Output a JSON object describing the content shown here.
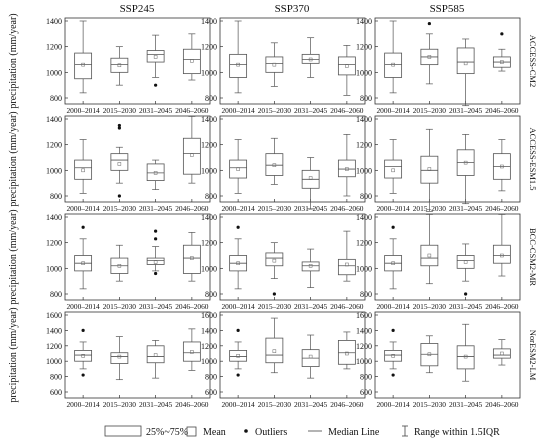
{
  "chart_data": {
    "type": "box",
    "columns": [
      "SSP245",
      "SSP370",
      "SSP585"
    ],
    "rows": [
      "ACCESS-CM2",
      "ACCESS-ESM1.5",
      "BCC-CSM2-MR",
      "NorESM2-LM"
    ],
    "periods": [
      "2000–2014",
      "2015–2030",
      "2031–2045",
      "2046–2060"
    ],
    "ylabel": "precipitation (mm/year)",
    "ylim": [
      800,
      1400
    ],
    "ylim_last_row": [
      600,
      1600
    ],
    "yticks": [
      800,
      1000,
      1200,
      1400
    ],
    "yticks_last_row": [
      600,
      800,
      1000,
      1200,
      1400,
      1600
    ],
    "legend": {
      "box": "25%~75%",
      "mean": "Mean",
      "outliers": "Outliers",
      "median": "Median Line",
      "whisker": "Range within 1.5IQR"
    },
    "panels": [
      [
        [
          {
            "wlo": 840,
            "q1": 950,
            "med": 1060,
            "q3": 1150,
            "whi": 1400,
            "mean": 1060,
            "out": []
          },
          {
            "wlo": 900,
            "q1": 1000,
            "med": 1060,
            "q3": 1110,
            "whi": 1200,
            "mean": 1055,
            "out": []
          },
          {
            "wlo": 960,
            "q1": 1080,
            "med": 1140,
            "q3": 1170,
            "whi": 1290,
            "mean": 1120,
            "out": [
              900
            ]
          },
          {
            "wlo": 940,
            "q1": 990,
            "med": 1100,
            "q3": 1180,
            "whi": 1300,
            "mean": 1090,
            "out": []
          }
        ],
        [
          {
            "wlo": 840,
            "q1": 960,
            "med": 1060,
            "q3": 1140,
            "whi": 1400,
            "mean": 1060,
            "out": []
          },
          {
            "wlo": 890,
            "q1": 1000,
            "med": 1070,
            "q3": 1120,
            "whi": 1230,
            "mean": 1060,
            "out": []
          },
          {
            "wlo": 960,
            "q1": 1070,
            "med": 1100,
            "q3": 1140,
            "whi": 1270,
            "mean": 1100,
            "out": []
          },
          {
            "wlo": 820,
            "q1": 980,
            "med": 1060,
            "q3": 1120,
            "whi": 1210,
            "mean": 1050,
            "out": []
          }
        ],
        [
          {
            "wlo": 840,
            "q1": 960,
            "med": 1060,
            "q3": 1150,
            "whi": 1400,
            "mean": 1060,
            "out": []
          },
          {
            "wlo": 910,
            "q1": 1060,
            "med": 1120,
            "q3": 1180,
            "whi": 1300,
            "mean": 1120,
            "out": [
              1380
            ]
          },
          {
            "wlo": 740,
            "q1": 990,
            "med": 1080,
            "q3": 1190,
            "whi": 1260,
            "mean": 1070,
            "out": []
          },
          {
            "wlo": 1010,
            "q1": 1040,
            "med": 1080,
            "q3": 1120,
            "whi": 1180,
            "mean": 1080,
            "out": [
              1300
            ]
          }
        ]
      ],
      [
        [
          {
            "wlo": 820,
            "q1": 930,
            "med": 1020,
            "q3": 1080,
            "whi": 1240,
            "mean": 1000,
            "out": []
          },
          {
            "wlo": 900,
            "q1": 1000,
            "med": 1080,
            "q3": 1130,
            "whi": 1180,
            "mean": 1050,
            "out": [
              1350,
              1330,
              800
            ]
          },
          {
            "wlo": 850,
            "q1": 920,
            "med": 980,
            "q3": 1050,
            "whi": 1080,
            "mean": 980,
            "out": []
          },
          {
            "wlo": 900,
            "q1": 970,
            "med": 1130,
            "q3": 1250,
            "whi": 1420,
            "mean": 1120,
            "out": []
          }
        ],
        [
          {
            "wlo": 820,
            "q1": 940,
            "med": 1020,
            "q3": 1080,
            "whi": 1240,
            "mean": 1010,
            "out": []
          },
          {
            "wlo": 890,
            "q1": 960,
            "med": 1040,
            "q3": 1130,
            "whi": 1250,
            "mean": 1040,
            "out": []
          },
          {
            "wlo": 700,
            "q1": 860,
            "med": 930,
            "q3": 1000,
            "whi": 1100,
            "mean": 940,
            "out": []
          },
          {
            "wlo": 800,
            "q1": 950,
            "med": 1010,
            "q3": 1080,
            "whi": 1280,
            "mean": 1010,
            "out": []
          }
        ],
        [
          {
            "wlo": 820,
            "q1": 940,
            "med": 1030,
            "q3": 1080,
            "whi": 1240,
            "mean": 1000,
            "out": []
          },
          {
            "wlo": 680,
            "q1": 900,
            "med": 1000,
            "q3": 1110,
            "whi": 1320,
            "mean": 1010,
            "out": []
          },
          {
            "wlo": 740,
            "q1": 960,
            "med": 1060,
            "q3": 1160,
            "whi": 1280,
            "mean": 1060,
            "out": []
          },
          {
            "wlo": 840,
            "q1": 930,
            "med": 1030,
            "q3": 1130,
            "whi": 1240,
            "mean": 1030,
            "out": []
          }
        ]
      ],
      [
        [
          {
            "wlo": 840,
            "q1": 980,
            "med": 1040,
            "q3": 1100,
            "whi": 1230,
            "mean": 1040,
            "out": [
              1320
            ]
          },
          {
            "wlo": 900,
            "q1": 960,
            "med": 1020,
            "q3": 1080,
            "whi": 1180,
            "mean": 1020,
            "out": []
          },
          {
            "wlo": 980,
            "q1": 1030,
            "med": 1060,
            "q3": 1080,
            "whi": 1170,
            "mean": 1050,
            "out": [
              1290,
              1230,
              960
            ]
          },
          {
            "wlo": 900,
            "q1": 960,
            "med": 1080,
            "q3": 1180,
            "whi": 1280,
            "mean": 1080,
            "out": []
          }
        ],
        [
          {
            "wlo": 840,
            "q1": 980,
            "med": 1040,
            "q3": 1100,
            "whi": 1230,
            "mean": 1040,
            "out": [
              1320
            ]
          },
          {
            "wlo": 920,
            "q1": 1020,
            "med": 1080,
            "q3": 1120,
            "whi": 1200,
            "mean": 1060,
            "out": [
              800
            ]
          },
          {
            "wlo": 850,
            "q1": 980,
            "med": 1020,
            "q3": 1050,
            "whi": 1150,
            "mean": 1020,
            "out": []
          },
          {
            "wlo": 900,
            "q1": 950,
            "med": 1020,
            "q3": 1070,
            "whi": 1290,
            "mean": 1030,
            "out": []
          }
        ],
        [
          {
            "wlo": 840,
            "q1": 980,
            "med": 1040,
            "q3": 1100,
            "whi": 1230,
            "mean": 1040,
            "out": [
              1320
            ]
          },
          {
            "wlo": 880,
            "q1": 1020,
            "med": 1080,
            "q3": 1180,
            "whi": 1420,
            "mean": 1100,
            "out": []
          },
          {
            "wlo": 900,
            "q1": 1000,
            "med": 1060,
            "q3": 1100,
            "whi": 1190,
            "mean": 1050,
            "out": [
              800
            ]
          },
          {
            "wlo": 940,
            "q1": 1040,
            "med": 1100,
            "q3": 1180,
            "whi": 1420,
            "mean": 1100,
            "out": []
          }
        ]
      ],
      [
        [
          {
            "wlo": 900,
            "q1": 1000,
            "med": 1080,
            "q3": 1140,
            "whi": 1250,
            "mean": 1070,
            "out": [
              1400,
              820
            ]
          },
          {
            "wlo": 760,
            "q1": 970,
            "med": 1060,
            "q3": 1110,
            "whi": 1320,
            "mean": 1060,
            "out": []
          },
          {
            "wlo": 780,
            "q1": 980,
            "med": 1060,
            "q3": 1200,
            "whi": 1270,
            "mean": 1080,
            "out": []
          },
          {
            "wlo": 880,
            "q1": 1000,
            "med": 1110,
            "q3": 1250,
            "whi": 1420,
            "mean": 1120,
            "out": []
          }
        ],
        [
          {
            "wlo": 900,
            "q1": 1000,
            "med": 1060,
            "q3": 1140,
            "whi": 1250,
            "mean": 1070,
            "out": [
              1400,
              820
            ]
          },
          {
            "wlo": 850,
            "q1": 980,
            "med": 1080,
            "q3": 1300,
            "whi": 1560,
            "mean": 1130,
            "out": []
          },
          {
            "wlo": 780,
            "q1": 930,
            "med": 1040,
            "q3": 1150,
            "whi": 1340,
            "mean": 1060,
            "out": []
          },
          {
            "wlo": 900,
            "q1": 960,
            "med": 1110,
            "q3": 1270,
            "whi": 1380,
            "mean": 1100,
            "out": []
          }
        ],
        [
          {
            "wlo": 900,
            "q1": 1000,
            "med": 1080,
            "q3": 1140,
            "whi": 1250,
            "mean": 1070,
            "out": [
              1400,
              820
            ]
          },
          {
            "wlo": 850,
            "q1": 940,
            "med": 1090,
            "q3": 1230,
            "whi": 1330,
            "mean": 1090,
            "out": []
          },
          {
            "wlo": 740,
            "q1": 900,
            "med": 1060,
            "q3": 1200,
            "whi": 1480,
            "mean": 1060,
            "out": []
          },
          {
            "wlo": 950,
            "q1": 1040,
            "med": 1080,
            "q3": 1160,
            "whi": 1280,
            "mean": 1100,
            "out": []
          }
        ]
      ]
    ]
  }
}
